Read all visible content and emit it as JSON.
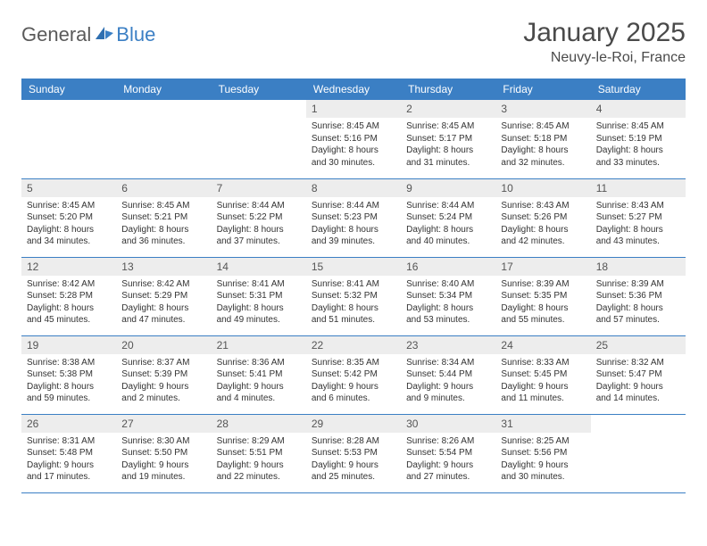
{
  "brand": {
    "word1": "General",
    "word2": "Blue"
  },
  "title": "January 2025",
  "location": "Neuvy-le-Roi, France",
  "colors": {
    "header_bg": "#3b7fc4",
    "header_text": "#ffffff",
    "daynum_bg": "#ededed",
    "text": "#333333",
    "border": "#3b7fc4"
  },
  "typography": {
    "title_fontsize": 30,
    "location_fontsize": 16,
    "header_fontsize": 12,
    "daynum_fontsize": 12,
    "body_fontsize": 10
  },
  "day_headers": [
    "Sunday",
    "Monday",
    "Tuesday",
    "Wednesday",
    "Thursday",
    "Friday",
    "Saturday"
  ],
  "weeks": [
    [
      {
        "empty": true
      },
      {
        "empty": true
      },
      {
        "empty": true
      },
      {
        "num": "1",
        "sunrise": "Sunrise: 8:45 AM",
        "sunset": "Sunset: 5:16 PM",
        "d1": "Daylight: 8 hours",
        "d2": "and 30 minutes."
      },
      {
        "num": "2",
        "sunrise": "Sunrise: 8:45 AM",
        "sunset": "Sunset: 5:17 PM",
        "d1": "Daylight: 8 hours",
        "d2": "and 31 minutes."
      },
      {
        "num": "3",
        "sunrise": "Sunrise: 8:45 AM",
        "sunset": "Sunset: 5:18 PM",
        "d1": "Daylight: 8 hours",
        "d2": "and 32 minutes."
      },
      {
        "num": "4",
        "sunrise": "Sunrise: 8:45 AM",
        "sunset": "Sunset: 5:19 PM",
        "d1": "Daylight: 8 hours",
        "d2": "and 33 minutes."
      }
    ],
    [
      {
        "num": "5",
        "sunrise": "Sunrise: 8:45 AM",
        "sunset": "Sunset: 5:20 PM",
        "d1": "Daylight: 8 hours",
        "d2": "and 34 minutes."
      },
      {
        "num": "6",
        "sunrise": "Sunrise: 8:45 AM",
        "sunset": "Sunset: 5:21 PM",
        "d1": "Daylight: 8 hours",
        "d2": "and 36 minutes."
      },
      {
        "num": "7",
        "sunrise": "Sunrise: 8:44 AM",
        "sunset": "Sunset: 5:22 PM",
        "d1": "Daylight: 8 hours",
        "d2": "and 37 minutes."
      },
      {
        "num": "8",
        "sunrise": "Sunrise: 8:44 AM",
        "sunset": "Sunset: 5:23 PM",
        "d1": "Daylight: 8 hours",
        "d2": "and 39 minutes."
      },
      {
        "num": "9",
        "sunrise": "Sunrise: 8:44 AM",
        "sunset": "Sunset: 5:24 PM",
        "d1": "Daylight: 8 hours",
        "d2": "and 40 minutes."
      },
      {
        "num": "10",
        "sunrise": "Sunrise: 8:43 AM",
        "sunset": "Sunset: 5:26 PM",
        "d1": "Daylight: 8 hours",
        "d2": "and 42 minutes."
      },
      {
        "num": "11",
        "sunrise": "Sunrise: 8:43 AM",
        "sunset": "Sunset: 5:27 PM",
        "d1": "Daylight: 8 hours",
        "d2": "and 43 minutes."
      }
    ],
    [
      {
        "num": "12",
        "sunrise": "Sunrise: 8:42 AM",
        "sunset": "Sunset: 5:28 PM",
        "d1": "Daylight: 8 hours",
        "d2": "and 45 minutes."
      },
      {
        "num": "13",
        "sunrise": "Sunrise: 8:42 AM",
        "sunset": "Sunset: 5:29 PM",
        "d1": "Daylight: 8 hours",
        "d2": "and 47 minutes."
      },
      {
        "num": "14",
        "sunrise": "Sunrise: 8:41 AM",
        "sunset": "Sunset: 5:31 PM",
        "d1": "Daylight: 8 hours",
        "d2": "and 49 minutes."
      },
      {
        "num": "15",
        "sunrise": "Sunrise: 8:41 AM",
        "sunset": "Sunset: 5:32 PM",
        "d1": "Daylight: 8 hours",
        "d2": "and 51 minutes."
      },
      {
        "num": "16",
        "sunrise": "Sunrise: 8:40 AM",
        "sunset": "Sunset: 5:34 PM",
        "d1": "Daylight: 8 hours",
        "d2": "and 53 minutes."
      },
      {
        "num": "17",
        "sunrise": "Sunrise: 8:39 AM",
        "sunset": "Sunset: 5:35 PM",
        "d1": "Daylight: 8 hours",
        "d2": "and 55 minutes."
      },
      {
        "num": "18",
        "sunrise": "Sunrise: 8:39 AM",
        "sunset": "Sunset: 5:36 PM",
        "d1": "Daylight: 8 hours",
        "d2": "and 57 minutes."
      }
    ],
    [
      {
        "num": "19",
        "sunrise": "Sunrise: 8:38 AM",
        "sunset": "Sunset: 5:38 PM",
        "d1": "Daylight: 8 hours",
        "d2": "and 59 minutes."
      },
      {
        "num": "20",
        "sunrise": "Sunrise: 8:37 AM",
        "sunset": "Sunset: 5:39 PM",
        "d1": "Daylight: 9 hours",
        "d2": "and 2 minutes."
      },
      {
        "num": "21",
        "sunrise": "Sunrise: 8:36 AM",
        "sunset": "Sunset: 5:41 PM",
        "d1": "Daylight: 9 hours",
        "d2": "and 4 minutes."
      },
      {
        "num": "22",
        "sunrise": "Sunrise: 8:35 AM",
        "sunset": "Sunset: 5:42 PM",
        "d1": "Daylight: 9 hours",
        "d2": "and 6 minutes."
      },
      {
        "num": "23",
        "sunrise": "Sunrise: 8:34 AM",
        "sunset": "Sunset: 5:44 PM",
        "d1": "Daylight: 9 hours",
        "d2": "and 9 minutes."
      },
      {
        "num": "24",
        "sunrise": "Sunrise: 8:33 AM",
        "sunset": "Sunset: 5:45 PM",
        "d1": "Daylight: 9 hours",
        "d2": "and 11 minutes."
      },
      {
        "num": "25",
        "sunrise": "Sunrise: 8:32 AM",
        "sunset": "Sunset: 5:47 PM",
        "d1": "Daylight: 9 hours",
        "d2": "and 14 minutes."
      }
    ],
    [
      {
        "num": "26",
        "sunrise": "Sunrise: 8:31 AM",
        "sunset": "Sunset: 5:48 PM",
        "d1": "Daylight: 9 hours",
        "d2": "and 17 minutes."
      },
      {
        "num": "27",
        "sunrise": "Sunrise: 8:30 AM",
        "sunset": "Sunset: 5:50 PM",
        "d1": "Daylight: 9 hours",
        "d2": "and 19 minutes."
      },
      {
        "num": "28",
        "sunrise": "Sunrise: 8:29 AM",
        "sunset": "Sunset: 5:51 PM",
        "d1": "Daylight: 9 hours",
        "d2": "and 22 minutes."
      },
      {
        "num": "29",
        "sunrise": "Sunrise: 8:28 AM",
        "sunset": "Sunset: 5:53 PM",
        "d1": "Daylight: 9 hours",
        "d2": "and 25 minutes."
      },
      {
        "num": "30",
        "sunrise": "Sunrise: 8:26 AM",
        "sunset": "Sunset: 5:54 PM",
        "d1": "Daylight: 9 hours",
        "d2": "and 27 minutes."
      },
      {
        "num": "31",
        "sunrise": "Sunrise: 8:25 AM",
        "sunset": "Sunset: 5:56 PM",
        "d1": "Daylight: 9 hours",
        "d2": "and 30 minutes."
      },
      {
        "empty": true
      }
    ]
  ]
}
